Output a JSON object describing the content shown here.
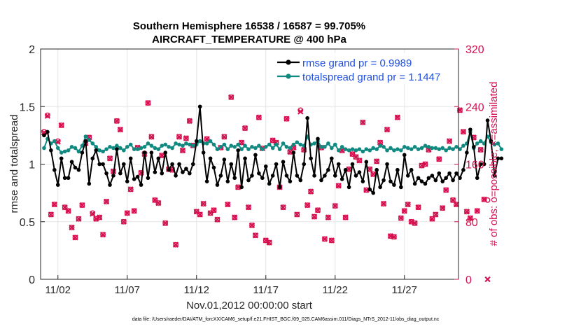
{
  "chart_data": {
    "type": "line",
    "title_line1": "Southern Hemisphere 16538 / 16587 = 99.705%",
    "title_line2": "AIRCRAFT_TEMPERATURE @ 400 hPa",
    "xlabel": "Nov.01,2012 00:00:00 start",
    "ylabel_left": "rmse and totalspread",
    "ylabel_right": "# of obs: o=possible; ×=assimilated",
    "footer": "data file: /Users/raeder/DAI/ATM_forcXX/CAM6_setup/f.e21.FHIST_BGC.f09_025.CAM6assim.011/Diags_NTrS_2012-11/obs_diag_output.nc",
    "xlim": [
      0.5,
      60.8
    ],
    "x_ticks": [
      {
        "x": 3,
        "label": "11/02"
      },
      {
        "x": 13,
        "label": "11/07"
      },
      {
        "x": 23,
        "label": "11/12"
      },
      {
        "x": 33,
        "label": "11/17"
      },
      {
        "x": 43,
        "label": "11/22"
      },
      {
        "x": 53,
        "label": "11/27"
      }
    ],
    "ylim_left": [
      0,
      2
    ],
    "yticks_left": [
      "0",
      "0.5",
      "1",
      "1.5",
      "2"
    ],
    "ylim_right": [
      0,
      320
    ],
    "yticks_right": [
      "0",
      "80",
      "160",
      "240",
      "320"
    ],
    "colors": {
      "rmse": "#000000",
      "spread": "#108a80",
      "obs": "#d6104f",
      "right_axis": "#d6104f",
      "legend_text": "#1f4fe0",
      "grid": "#e6e6e6"
    },
    "series": [
      {
        "name": "rmse",
        "legend": "rmse grand pr = 0.9989",
        "x_start": 1,
        "x_step": 0.5,
        "values": [
          1.25,
          1.28,
          1.12,
          0.95,
          0.82,
          1.05,
          0.88,
          0.88,
          1.02,
          0.97,
          0.95,
          1.1,
          1.2,
          0.83,
          1.05,
          1.12,
          1.0,
          1.0,
          0.92,
          0.82,
          0.9,
          1.13,
          0.92,
          1.0,
          0.85,
          1.05,
          0.87,
          0.89,
          0.82,
          1.1,
          0.88,
          1.1,
          0.93,
          1.05,
          0.92,
          1.1,
          0.95,
          1.0,
          0.9,
          1.0,
          0.93,
          0.96,
          0.92,
          1.0,
          1.2,
          1.5,
          1.1,
          0.85,
          1.05,
          0.97,
          0.82,
          0.9,
          1.04,
          0.85,
          1.0,
          0.88,
          1.12,
          0.8,
          1.05,
          0.86,
          0.9,
          1.08,
          0.92,
          0.88,
          0.98,
          0.83,
          0.9,
          1.0,
          0.8,
          1.02,
          0.9,
          0.85,
          1.1,
          0.9,
          0.86,
          1.0,
          1.4,
          1.05,
          0.9,
          1.22,
          0.86,
          0.9,
          0.95,
          1.05,
          0.9,
          1.0,
          0.87,
          0.95,
          0.8,
          1.0,
          0.9,
          0.93,
          0.85,
          1.02,
          0.78,
          0.75,
          0.95,
          0.8,
          0.86,
          1.0,
          0.85,
          0.82,
          0.95,
          0.8,
          1.08,
          0.9,
          0.95,
          0.83,
          0.88,
          0.85,
          0.83,
          0.88,
          0.9,
          0.86,
          0.92,
          0.85,
          0.88,
          0.92,
          0.86,
          0.92,
          0.88,
          0.95,
          1.1,
          1.3,
          1.15,
          0.88,
          1.0,
          1.0,
          1.38,
          1.2,
          0.9,
          1.05,
          1.05
        ]
      },
      {
        "name": "totalspread",
        "legend": "totalspread grand pr = 1.1447",
        "x_start": 1,
        "x_step": 0.5,
        "values": [
          1.14,
          1.22,
          1.18,
          1.2,
          1.14,
          1.1,
          1.11,
          1.12,
          1.15,
          1.14,
          1.11,
          1.16,
          1.24,
          1.21,
          1.18,
          1.15,
          1.12,
          1.11,
          1.13,
          1.15,
          1.14,
          1.16,
          1.14,
          1.12,
          1.15,
          1.17,
          1.13,
          1.13,
          1.14,
          1.15,
          1.18,
          1.16,
          1.14,
          1.13,
          1.16,
          1.17,
          1.15,
          1.14,
          1.18,
          1.17,
          1.16,
          1.18,
          1.17,
          1.16,
          1.17,
          1.2,
          1.18,
          1.18,
          1.2,
          1.17,
          1.13,
          1.15,
          1.17,
          1.13,
          1.16,
          1.15,
          1.17,
          1.13,
          1.16,
          1.13,
          1.15,
          1.14,
          1.16,
          1.13,
          1.15,
          1.17,
          1.14,
          1.17,
          1.13,
          1.18,
          1.15,
          1.14,
          1.17,
          1.19,
          1.17,
          1.16,
          1.24,
          1.17,
          1.18,
          1.2,
          1.15,
          1.15,
          1.18,
          1.14,
          1.17,
          1.12,
          1.15,
          1.13,
          1.12,
          1.13,
          1.12,
          1.13,
          1.11,
          1.13,
          1.12,
          1.14,
          1.13,
          1.16,
          1.15,
          1.12,
          1.14,
          1.12,
          1.13,
          1.12,
          1.15,
          1.14,
          1.13,
          1.15,
          1.13,
          1.14,
          1.16,
          1.15,
          1.14,
          1.14,
          1.13,
          1.14,
          1.12,
          1.14,
          1.13,
          1.15,
          1.13,
          1.16,
          1.18,
          1.28,
          1.14,
          1.18,
          1.2,
          1.18,
          1.24,
          1.19,
          1.17,
          1.18,
          1.13
        ]
      },
      {
        "name": "obs_possible",
        "axis": "right",
        "marker": "o",
        "x_start": 1,
        "x_step": 0.5,
        "values": [
          205,
          228,
          90,
          104,
          192,
          214,
          100,
          95,
          72,
          58,
          84,
          103,
          189,
          197,
          92,
          84,
          86,
          62,
          108,
          168,
          150,
          220,
          208,
          80,
          92,
          125,
          95,
          183,
          148,
          175,
          245,
          198,
          110,
          106,
          172,
          78,
          153,
          152,
          48,
          198,
          179,
          196,
          220,
          186,
          94,
          90,
          105,
          195,
          92,
          96,
          83,
          183,
          198,
          104,
          253,
          86,
          128,
          190,
          210,
          100,
          75,
          61,
          225,
          182,
          54,
          51,
          193,
          190,
          128,
          100,
          223,
          177,
          183,
          90,
          235,
          180,
          103,
          122,
          87,
          96,
          183,
          56,
          86,
          54,
          102,
          130,
          179,
          86,
          153,
          174,
          170,
          165,
          218,
          124,
          153,
          146,
          164,
          190,
          105,
          208,
          60,
          59,
          225,
          85,
          95,
          104,
          80,
          78,
          100,
          158,
          160,
          180,
          84,
          90,
          167,
          99,
          124,
          192,
          110,
          104,
          235,
          205,
          94,
          85,
          197,
          95,
          180,
          111,
          110
        ]
      },
      {
        "name": "obs_assimilated",
        "axis": "right",
        "marker": "x",
        "x_start": 1,
        "x_step": 0.5,
        "values": [
          204,
          227,
          90,
          104,
          191,
          214,
          100,
          95,
          72,
          58,
          84,
          103,
          189,
          197,
          91,
          84,
          86,
          62,
          108,
          168,
          150,
          220,
          208,
          80,
          92,
          125,
          95,
          183,
          148,
          174,
          245,
          198,
          110,
          106,
          172,
          78,
          153,
          152,
          48,
          198,
          179,
          196,
          220,
          186,
          94,
          90,
          105,
          195,
          92,
          96,
          83,
          183,
          198,
          104,
          253,
          86,
          128,
          190,
          210,
          100,
          75,
          61,
          225,
          182,
          54,
          51,
          193,
          190,
          128,
          100,
          223,
          177,
          183,
          90,
          233,
          180,
          103,
          122,
          87,
          96,
          183,
          56,
          86,
          54,
          102,
          130,
          179,
          86,
          153,
          174,
          170,
          165,
          218,
          124,
          153,
          146,
          164,
          190,
          105,
          208,
          60,
          59,
          225,
          85,
          95,
          104,
          80,
          78,
          100,
          158,
          160,
          180,
          84,
          90,
          167,
          99,
          124,
          192,
          110,
          104,
          235,
          205,
          94,
          85,
          197,
          95,
          180,
          111,
          0
        ]
      }
    ]
  }
}
